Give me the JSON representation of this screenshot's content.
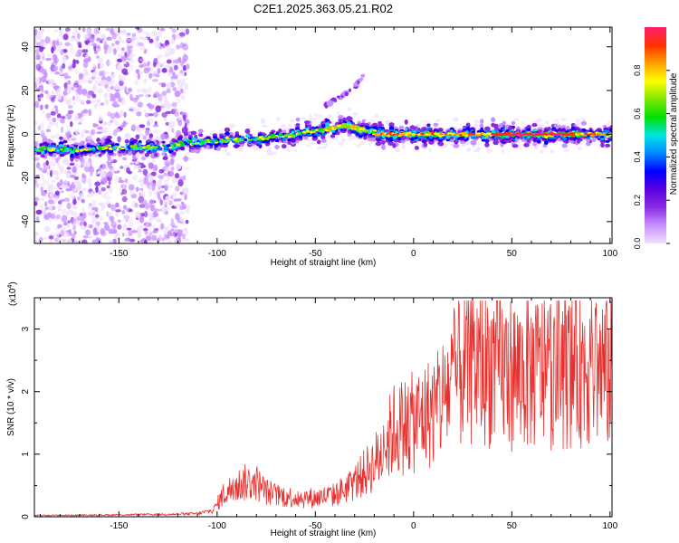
{
  "title": "C2E1.2025.363.05.21.R02",
  "chart_data": [
    {
      "type": "heatmap",
      "title": "C2E1.2025.363.05.21.R02",
      "xlabel": "Height of straight line (km)",
      "ylabel": "Frequency (Hz)",
      "xlim": [
        -193,
        101
      ],
      "ylim": [
        -50,
        49
      ],
      "xticks": [
        -150,
        -100,
        -50,
        0,
        50,
        100
      ],
      "yticks": [
        -40,
        -20,
        0,
        20,
        40
      ],
      "xtick_labels": [
        "-150",
        "-100",
        "-50",
        "0",
        "50",
        "100"
      ],
      "ytick_labels": [
        "-40",
        "-20",
        "0",
        "20",
        "40"
      ],
      "ridge": {
        "x": [
          -193,
          -170,
          -150,
          -130,
          -115,
          -100,
          -80,
          -60,
          -45,
          -35,
          -25,
          -15,
          0,
          25,
          50,
          75,
          101
        ],
        "y": [
          -7,
          -7,
          -6,
          -6,
          -4,
          -3,
          -2,
          0,
          2,
          4,
          2,
          0,
          0,
          0,
          0,
          0,
          0
        ]
      },
      "spur": {
        "x": [
          -45,
          -37,
          -30,
          -25
        ],
        "y": [
          13,
          17,
          22,
          27
        ]
      },
      "colorbar": {
        "label": "Normalized spectral amplitude",
        "range": [
          0,
          1
        ],
        "ticks": [
          0.0,
          0.2,
          0.4,
          0.6,
          0.8
        ],
        "tick_labels": [
          "0.0",
          "0.2",
          "0.4",
          "0.6",
          "0.8"
        ],
        "colors": [
          "#f0e2ff",
          "#c891ff",
          "#8a2be2",
          "#5a00e0",
          "#0000ff",
          "#0088ff",
          "#00e5e5",
          "#00e000",
          "#7fe600",
          "#ffff00",
          "#ffa000",
          "#ff3000",
          "#ff1f6e"
        ]
      }
    },
    {
      "type": "line",
      "xlabel": "Height of straight line (km)",
      "ylabel": "SNR (10 * v/v)",
      "multiplier_label": "(x10",
      "multiplier_exp": "4",
      "multiplier_close": ")",
      "xlim": [
        -193,
        101
      ],
      "ylim": [
        0,
        3.5
      ],
      "xticks": [
        -150,
        -100,
        -50,
        0,
        50,
        100
      ],
      "yticks": [
        0,
        1,
        2,
        3
      ],
      "xtick_labels": [
        "-150",
        "-100",
        "-50",
        "0",
        "50",
        "100"
      ],
      "ytick_labels": [
        "0",
        "1",
        "2",
        "3"
      ],
      "series": [
        {
          "name": "SNR",
          "color": "#e8312e",
          "envelope": {
            "x": [
              -193,
              -150,
              -120,
              -110,
              -102,
              -97,
              -90,
              -85,
              -80,
              -75,
              -70,
              -60,
              -50,
              -40,
              -35,
              -30,
              -25,
              -20,
              -15,
              -10,
              -5,
              0,
              5,
              10,
              15,
              20,
              25,
              30,
              40,
              50,
              60,
              70,
              80,
              90,
              101
            ],
            "y": [
              0.02,
              0.03,
              0.04,
              0.05,
              0.1,
              0.35,
              0.5,
              0.55,
              0.55,
              0.4,
              0.35,
              0.3,
              0.3,
              0.35,
              0.45,
              0.55,
              0.7,
              0.85,
              1.1,
              1.4,
              1.45,
              1.5,
              1.6,
              1.7,
              1.9,
              2.2,
              2.35,
              2.45,
              2.4,
              2.3,
              2.3,
              2.35,
              2.4,
              2.45,
              2.3
            ]
          }
        }
      ]
    }
  ]
}
